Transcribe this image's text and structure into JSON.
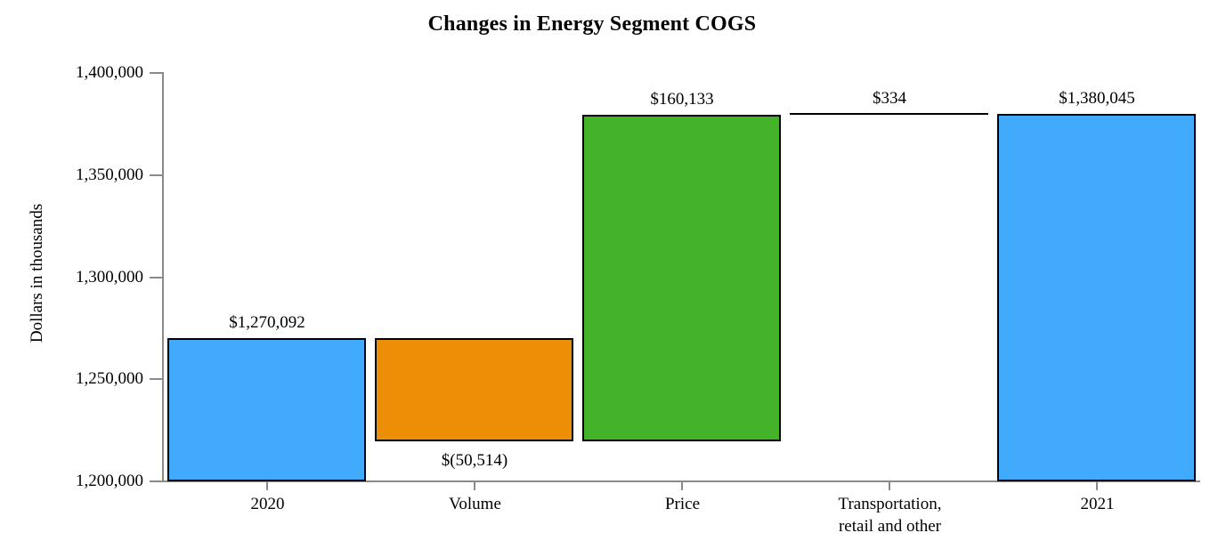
{
  "title": "Changes in Energy Segment COGS",
  "colors": {
    "axis": "#8a8a8a",
    "bar_border": "#000000",
    "background": "#ffffff",
    "text": "#000000",
    "total_blue": "#41aafa",
    "decrease_orange": "#ec8e06",
    "increase_green": "#45b32a"
  },
  "chart_data": {
    "type": "bar",
    "subtype": "waterfall",
    "title": "Changes in Energy Segment COGS",
    "xlabel": "",
    "ylabel": "Dollars in thousands",
    "ylim": [
      1200000,
      1400000
    ],
    "ytick_step": 50000,
    "grid": false,
    "legend": "none",
    "yticks": [
      {
        "value": 1400000,
        "label": "1,400,000"
      },
      {
        "value": 1350000,
        "label": "1,350,000"
      },
      {
        "value": 1300000,
        "label": "1,300,000"
      },
      {
        "value": 1250000,
        "label": "1,250,000"
      },
      {
        "value": 1200000,
        "label": "1,200,000"
      }
    ],
    "categories": [
      "2020",
      "Volume",
      "Price",
      "Transportation, retail and other",
      "2021"
    ],
    "bars": [
      {
        "category": "2020",
        "category_lines": [
          "2020"
        ],
        "role": "total",
        "value": 1270092,
        "value_label": "$1,270,092",
        "segment_start": 1200000,
        "segment_end": 1270092,
        "color": "#41aafa",
        "value_label_position": "above"
      },
      {
        "category": "Volume",
        "category_lines": [
          "Volume"
        ],
        "role": "decrease",
        "value": -50514,
        "value_label": "$(50,514)",
        "segment_start": 1219578,
        "segment_end": 1270092,
        "color": "#ec8e06",
        "value_label_position": "below"
      },
      {
        "category": "Price",
        "category_lines": [
          "Price"
        ],
        "role": "increase",
        "value": 160133,
        "value_label": "$160,133",
        "segment_start": 1219578,
        "segment_end": 1379711,
        "color": "#45b32a",
        "value_label_position": "above"
      },
      {
        "category": "Transportation, retail and other",
        "category_lines": [
          "Transportation,",
          "retail and other"
        ],
        "role": "increase-flat-line",
        "value": 334,
        "value_label": "$334",
        "segment_start": 1379711,
        "segment_end": 1380045,
        "color": "#000000",
        "value_label_position": "above"
      },
      {
        "category": "2021",
        "category_lines": [
          "2021"
        ],
        "role": "total",
        "value": 1380045,
        "value_label": "$1,380,045",
        "segment_start": 1200000,
        "segment_end": 1380045,
        "color": "#41aafa",
        "value_label_position": "above"
      }
    ]
  }
}
